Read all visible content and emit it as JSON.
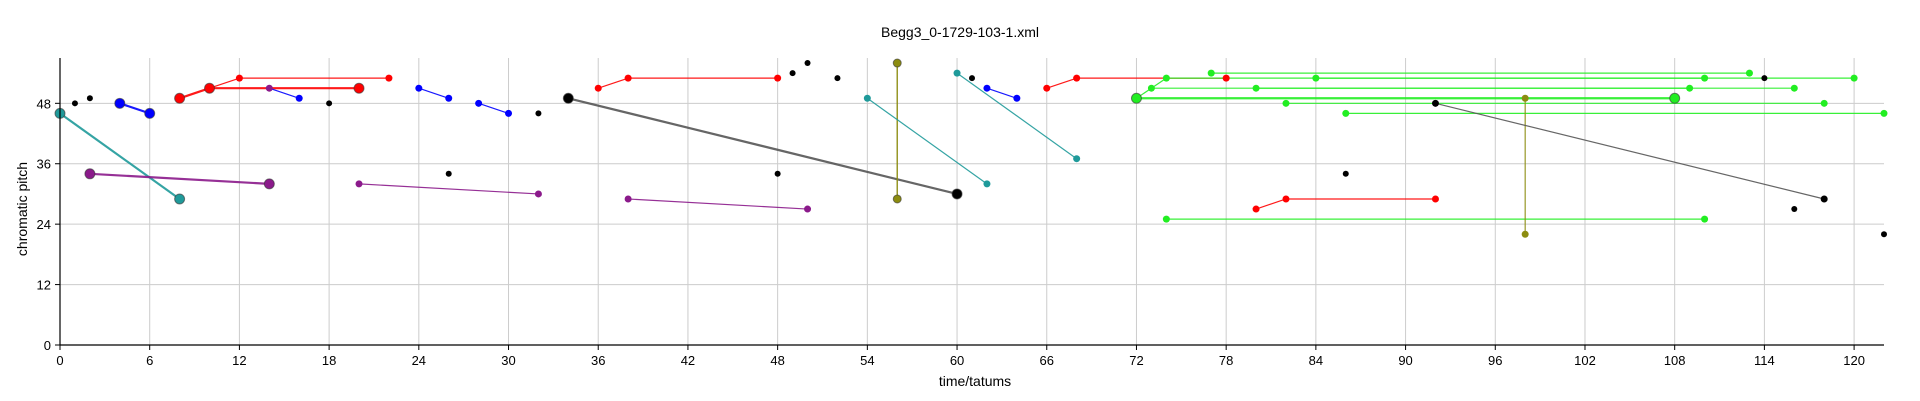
{
  "chart_data": {
    "type": "scatter",
    "title": "Begg3_0-1729-103-1.xml",
    "xlabel": "time/tatums",
    "ylabel": "chromatic pitch",
    "xlim": [
      0,
      122
    ],
    "ylim": [
      0,
      57
    ],
    "xticks": [
      0,
      6,
      12,
      18,
      24,
      30,
      36,
      42,
      48,
      54,
      60,
      66,
      72,
      78,
      84,
      90,
      96,
      102,
      108,
      114,
      120
    ],
    "yticks": [
      0,
      12,
      24,
      36,
      48
    ],
    "grid": true,
    "colors": {
      "red": "#ff0000",
      "blue": "#0000ff",
      "teal": "#1f9a9a",
      "purple": "#8b1a8b",
      "black": "#000000",
      "gray": "#555555",
      "green": "#22ee22",
      "olive": "#8c8c10"
    },
    "segments": [
      {
        "color": "teal",
        "x": [
          0,
          8
        ],
        "y": [
          46,
          29
        ],
        "w": 2.2
      },
      {
        "color": "purple",
        "x": [
          2,
          14
        ],
        "y": [
          34,
          32
        ],
        "w": 2.2
      },
      {
        "color": "red",
        "x": [
          8,
          10
        ],
        "y": [
          49,
          51
        ],
        "w": 2.2
      },
      {
        "color": "red",
        "x": [
          10,
          20
        ],
        "y": [
          51,
          51
        ],
        "w": 2.2
      },
      {
        "color": "red",
        "x": [
          10,
          12
        ],
        "y": [
          51,
          53
        ],
        "w": 1.2
      },
      {
        "color": "red",
        "x": [
          12,
          22
        ],
        "y": [
          53,
          53
        ],
        "w": 1.2
      },
      {
        "color": "blue",
        "x": [
          4,
          6
        ],
        "y": [
          48,
          46
        ],
        "w": 2.2
      },
      {
        "color": "blue",
        "x": [
          14,
          16
        ],
        "y": [
          51,
          49
        ],
        "w": 1.2
      },
      {
        "color": "blue",
        "x": [
          24,
          26
        ],
        "y": [
          51,
          49
        ],
        "w": 1.2
      },
      {
        "color": "blue",
        "x": [
          28,
          30
        ],
        "y": [
          48,
          46
        ],
        "w": 1.2
      },
      {
        "color": "purple",
        "x": [
          20,
          32
        ],
        "y": [
          32,
          30
        ],
        "w": 1.2
      },
      {
        "color": "purple",
        "x": [
          38,
          50
        ],
        "y": [
          29,
          27
        ],
        "w": 1.2
      },
      {
        "color": "gray",
        "x": [
          34,
          60
        ],
        "y": [
          49,
          30
        ],
        "w": 2.2
      },
      {
        "color": "red",
        "x": [
          36,
          38
        ],
        "y": [
          51,
          53
        ],
        "w": 1.2
      },
      {
        "color": "red",
        "x": [
          38,
          48
        ],
        "y": [
          53,
          53
        ],
        "w": 1.2
      },
      {
        "color": "olive",
        "x": [
          56,
          56
        ],
        "y": [
          56,
          29
        ],
        "w": 1.5
      },
      {
        "color": "teal",
        "x": [
          54,
          62
        ],
        "y": [
          49,
          32
        ],
        "w": 1.2
      },
      {
        "color": "teal",
        "x": [
          60,
          68
        ],
        "y": [
          54,
          37
        ],
        "w": 1.2
      },
      {
        "color": "blue",
        "x": [
          62,
          64
        ],
        "y": [
          51,
          49
        ],
        "w": 1.2
      },
      {
        "color": "red",
        "x": [
          66,
          68
        ],
        "y": [
          51,
          53
        ],
        "w": 1.2
      },
      {
        "color": "red",
        "x": [
          68,
          78
        ],
        "y": [
          53,
          53
        ],
        "w": 1.2
      },
      {
        "color": "green",
        "x": [
          72,
          108
        ],
        "y": [
          49,
          49
        ],
        "w": 2.2
      },
      {
        "color": "green",
        "x": [
          72,
          74
        ],
        "y": [
          49,
          53
        ],
        "w": 1.2
      },
      {
        "color": "green",
        "x": [
          74,
          110
        ],
        "y": [
          53,
          53
        ],
        "w": 1.2
      },
      {
        "color": "green",
        "x": [
          73,
          109
        ],
        "y": [
          51,
          51
        ],
        "w": 1.2
      },
      {
        "color": "green",
        "x": [
          77,
          113
        ],
        "y": [
          54,
          54
        ],
        "w": 1.2
      },
      {
        "color": "green",
        "x": [
          84,
          120
        ],
        "y": [
          53,
          53
        ],
        "w": 1.2
      },
      {
        "color": "green",
        "x": [
          80,
          116
        ],
        "y": [
          51,
          51
        ],
        "w": 1.2
      },
      {
        "color": "green",
        "x": [
          82,
          118
        ],
        "y": [
          48,
          48
        ],
        "w": 1.2
      },
      {
        "color": "green",
        "x": [
          86,
          122
        ],
        "y": [
          46,
          46
        ],
        "w": 1.2
      },
      {
        "color": "green",
        "x": [
          74,
          110
        ],
        "y": [
          25,
          25
        ],
        "w": 1.2
      },
      {
        "color": "red",
        "x": [
          80,
          82
        ],
        "y": [
          27,
          29
        ],
        "w": 1.2
      },
      {
        "color": "red",
        "x": [
          82,
          92
        ],
        "y": [
          29,
          29
        ],
        "w": 1.2
      },
      {
        "color": "olive",
        "x": [
          98,
          98
        ],
        "y": [
          49,
          22
        ],
        "w": 1.2
      },
      {
        "color": "gray",
        "x": [
          92,
          118
        ],
        "y": [
          48,
          29
        ],
        "w": 1.2
      }
    ],
    "points": [
      {
        "color": "black",
        "x": 1,
        "y": 48,
        "s": 3
      },
      {
        "color": "black",
        "x": 2,
        "y": 49,
        "s": 3
      },
      {
        "color": "teal",
        "x": 0,
        "y": 46,
        "s": 5
      },
      {
        "color": "purple",
        "x": 2,
        "y": 34,
        "s": 5
      },
      {
        "color": "teal",
        "x": 8,
        "y": 29,
        "s": 5
      },
      {
        "color": "purple",
        "x": 14,
        "y": 32,
        "s": 5
      },
      {
        "color": "blue",
        "x": 4,
        "y": 48,
        "s": 5
      },
      {
        "color": "blue",
        "x": 6,
        "y": 46,
        "s": 5
      },
      {
        "color": "red",
        "x": 8,
        "y": 49,
        "s": 5
      },
      {
        "color": "red",
        "x": 10,
        "y": 51,
        "s": 5
      },
      {
        "color": "red",
        "x": 20,
        "y": 51,
        "s": 5
      },
      {
        "color": "red",
        "x": 12,
        "y": 53,
        "s": 3.5
      },
      {
        "color": "red",
        "x": 22,
        "y": 53,
        "s": 3.5
      },
      {
        "color": "purple",
        "x": 14,
        "y": 51,
        "s": 3.5
      },
      {
        "color": "blue",
        "x": 16,
        "y": 49,
        "s": 3.5
      },
      {
        "color": "black",
        "x": 18,
        "y": 48,
        "s": 3
      },
      {
        "color": "blue",
        "x": 24,
        "y": 51,
        "s": 3.5
      },
      {
        "color": "blue",
        "x": 26,
        "y": 49,
        "s": 3.5
      },
      {
        "color": "blue",
        "x": 28,
        "y": 48,
        "s": 3.5
      },
      {
        "color": "blue",
        "x": 30,
        "y": 46,
        "s": 3.5
      },
      {
        "color": "black",
        "x": 32,
        "y": 46,
        "s": 3
      },
      {
        "color": "black",
        "x": 26,
        "y": 34,
        "s": 3
      },
      {
        "color": "purple",
        "x": 20,
        "y": 32,
        "s": 3.5
      },
      {
        "color": "purple",
        "x": 32,
        "y": 30,
        "s": 3.5
      },
      {
        "color": "black",
        "x": 34,
        "y": 49,
        "s": 5
      },
      {
        "color": "black",
        "x": 60,
        "y": 30,
        "s": 5
      },
      {
        "color": "red",
        "x": 36,
        "y": 51,
        "s": 3.5
      },
      {
        "color": "red",
        "x": 38,
        "y": 53,
        "s": 3.5
      },
      {
        "color": "red",
        "x": 48,
        "y": 53,
        "s": 3.5
      },
      {
        "color": "black",
        "x": 49,
        "y": 54,
        "s": 3
      },
      {
        "color": "black",
        "x": 50,
        "y": 56,
        "s": 3
      },
      {
        "color": "black",
        "x": 52,
        "y": 53,
        "s": 3
      },
      {
        "color": "black",
        "x": 48,
        "y": 34,
        "s": 3
      },
      {
        "color": "purple",
        "x": 38,
        "y": 29,
        "s": 3.5
      },
      {
        "color": "purple",
        "x": 50,
        "y": 27,
        "s": 3.5
      },
      {
        "color": "olive",
        "x": 56,
        "y": 56,
        "s": 4
      },
      {
        "color": "olive",
        "x": 56,
        "y": 29,
        "s": 4
      },
      {
        "color": "teal",
        "x": 54,
        "y": 49,
        "s": 3.5
      },
      {
        "color": "teal",
        "x": 62,
        "y": 32,
        "s": 3.5
      },
      {
        "color": "teal",
        "x": 60,
        "y": 54,
        "s": 3.5
      },
      {
        "color": "black",
        "x": 61,
        "y": 53,
        "s": 3
      },
      {
        "color": "blue",
        "x": 62,
        "y": 51,
        "s": 3.5
      },
      {
        "color": "blue",
        "x": 64,
        "y": 49,
        "s": 3.5
      },
      {
        "color": "teal",
        "x": 68,
        "y": 37,
        "s": 3.5
      },
      {
        "color": "red",
        "x": 66,
        "y": 51,
        "s": 3.5
      },
      {
        "color": "red",
        "x": 68,
        "y": 53,
        "s": 3.5
      },
      {
        "color": "red",
        "x": 78,
        "y": 53,
        "s": 3.5
      },
      {
        "color": "green",
        "x": 72,
        "y": 49,
        "s": 5
      },
      {
        "color": "green",
        "x": 108,
        "y": 49,
        "s": 5
      },
      {
        "color": "green",
        "x": 74,
        "y": 53,
        "s": 3.5
      },
      {
        "color": "green",
        "x": 110,
        "y": 53,
        "s": 3.5
      },
      {
        "color": "green",
        "x": 73,
        "y": 51,
        "s": 3.5
      },
      {
        "color": "green",
        "x": 109,
        "y": 51,
        "s": 3.5
      },
      {
        "color": "green",
        "x": 77,
        "y": 54,
        "s": 3.5
      },
      {
        "color": "green",
        "x": 113,
        "y": 54,
        "s": 3.5
      },
      {
        "color": "black",
        "x": 114,
        "y": 53,
        "s": 3
      },
      {
        "color": "green",
        "x": 84,
        "y": 53,
        "s": 3.5
      },
      {
        "color": "green",
        "x": 120,
        "y": 53,
        "s": 3.5
      },
      {
        "color": "green",
        "x": 80,
        "y": 51,
        "s": 3.5
      },
      {
        "color": "green",
        "x": 116,
        "y": 51,
        "s": 3.5
      },
      {
        "color": "green",
        "x": 82,
        "y": 48,
        "s": 3.5
      },
      {
        "color": "green",
        "x": 118,
        "y": 48,
        "s": 3.5
      },
      {
        "color": "green",
        "x": 86,
        "y": 46,
        "s": 3.5
      },
      {
        "color": "green",
        "x": 122,
        "y": 46,
        "s": 3.5
      },
      {
        "color": "black",
        "x": 92,
        "y": 48,
        "s": 3.5
      },
      {
        "color": "olive",
        "x": 98,
        "y": 49,
        "s": 3.5
      },
      {
        "color": "olive",
        "x": 98,
        "y": 22,
        "s": 3.5
      },
      {
        "color": "black",
        "x": 86,
        "y": 34,
        "s": 3
      },
      {
        "color": "red",
        "x": 80,
        "y": 27,
        "s": 3.5
      },
      {
        "color": "red",
        "x": 82,
        "y": 29,
        "s": 3.5
      },
      {
        "color": "red",
        "x": 92,
        "y": 29,
        "s": 3.5
      },
      {
        "color": "green",
        "x": 74,
        "y": 25,
        "s": 3.5
      },
      {
        "color": "green",
        "x": 110,
        "y": 25,
        "s": 3.5
      },
      {
        "color": "black",
        "x": 116,
        "y": 27,
        "s": 3
      },
      {
        "color": "black",
        "x": 118,
        "y": 29,
        "s": 3.5
      },
      {
        "color": "black",
        "x": 122,
        "y": 22,
        "s": 3
      }
    ]
  }
}
